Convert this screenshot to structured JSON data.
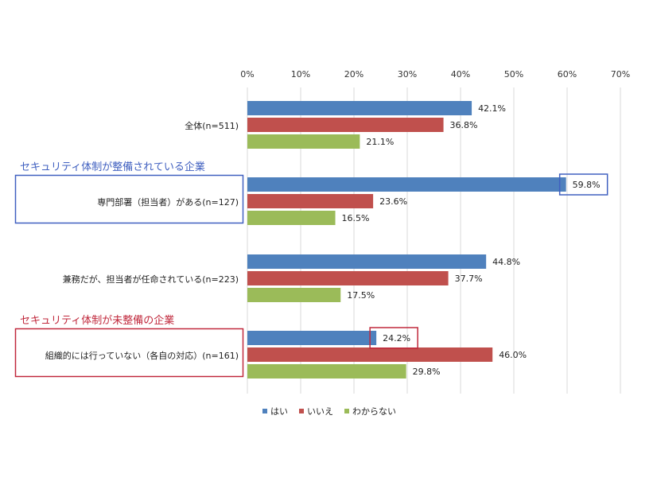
{
  "chart_data": {
    "type": "bar",
    "orientation": "horizontal",
    "categories": [
      "全体(n=511)",
      "専門部署（担当者）がある(n=127)",
      "兼務だが、担当者が任命されている(n=223)",
      "組織的には行っていない（各自の対応）(n=161)"
    ],
    "series": [
      {
        "name": "はい",
        "color": "#4f81bd",
        "values": [
          42.1,
          59.8,
          44.8,
          24.2
        ]
      },
      {
        "name": "いいえ",
        "color": "#c0504d",
        "values": [
          36.8,
          23.6,
          37.7,
          46.0
        ]
      },
      {
        "name": "わからない",
        "color": "#9bbb59",
        "values": [
          21.1,
          16.5,
          17.5,
          29.8
        ]
      }
    ],
    "xlim": [
      0,
      70
    ],
    "xticks": [
      "0%",
      "10%",
      "20%",
      "30%",
      "40%",
      "50%",
      "60%",
      "70%"
    ],
    "grid": true,
    "legend": "bottom-center",
    "annotations": [
      {
        "text": "セキュリティ体制が整備されている企業",
        "color": "#4060c0",
        "group": 1,
        "highlight_series": 0
      },
      {
        "text": "セキュリティ体制が未整備の企業",
        "color": "#c0283c",
        "group": 3,
        "highlight_series": 0
      }
    ]
  }
}
